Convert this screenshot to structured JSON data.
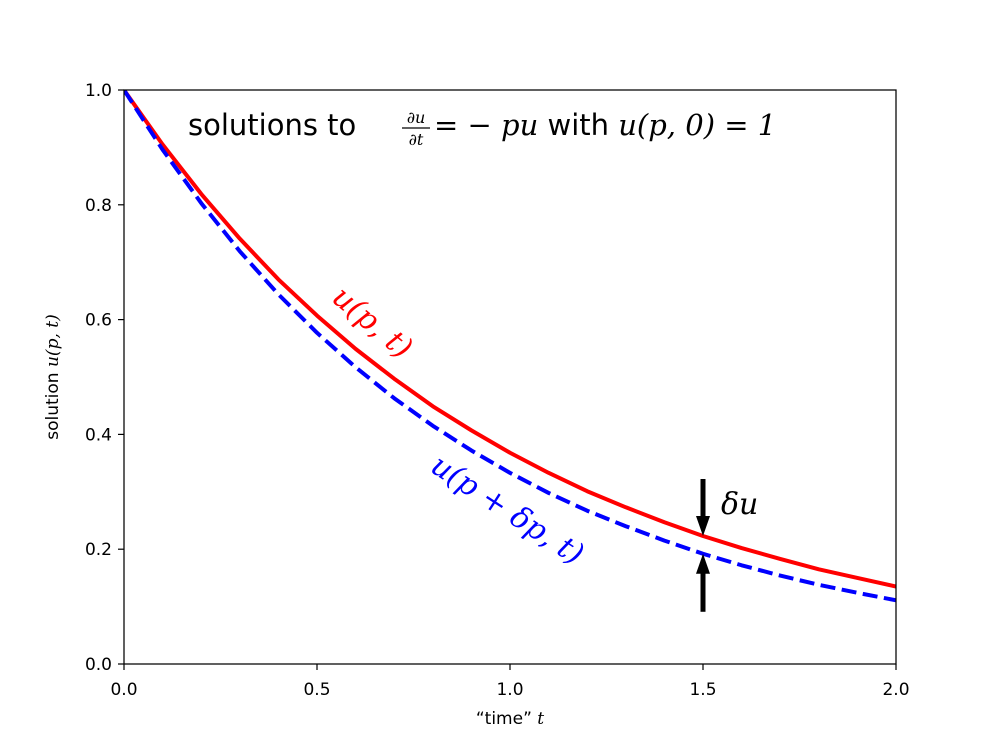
{
  "chart_data": {
    "type": "line",
    "title_parts": {
      "prefix": "solutions to ",
      "du": "∂u",
      "dt": "∂t",
      "equation": " = − pu",
      "middle": " with ",
      "initial": "u(p, 0) = 1"
    },
    "xlabel": {
      "text": "“time” ",
      "var": "t"
    },
    "ylabel": {
      "text": "solution ",
      "var": "u(p, t)"
    },
    "xlim": [
      0,
      2
    ],
    "ylim": [
      0,
      1
    ],
    "xticks": [
      0,
      0.5,
      1,
      1.5,
      2
    ],
    "xtick_labels": [
      "0.0",
      "0.5",
      "1.0",
      "1.5",
      "2.0"
    ],
    "yticks": [
      0,
      0.2,
      0.4,
      0.6,
      0.8,
      1
    ],
    "ytick_labels": [
      "0.0",
      "0.2",
      "0.4",
      "0.6",
      "0.8",
      "1.0"
    ],
    "grid": false,
    "series": [
      {
        "label": "u(p, t)",
        "color": "#ff0000",
        "style": "solid",
        "x": [
          0,
          0.1,
          0.2,
          0.3,
          0.4,
          0.5,
          0.6,
          0.7,
          0.8,
          0.9,
          1,
          1.1,
          1.2,
          1.3,
          1.4,
          1.5,
          1.6,
          1.7,
          1.8,
          1.9,
          2
        ],
        "y": [
          1,
          0.905,
          0.819,
          0.741,
          0.67,
          0.607,
          0.549,
          0.497,
          0.449,
          0.407,
          0.368,
          0.333,
          0.301,
          0.273,
          0.247,
          0.223,
          0.202,
          0.183,
          0.165,
          0.15,
          0.135
        ]
      },
      {
        "label": "u(p + δp, t)",
        "color": "#0000ff",
        "style": "dashed",
        "x": [
          0,
          0.1,
          0.2,
          0.3,
          0.4,
          0.5,
          0.6,
          0.7,
          0.8,
          0.9,
          1,
          1.1,
          1.2,
          1.3,
          1.4,
          1.5,
          1.6,
          1.7,
          1.8,
          1.9,
          2
        ],
        "y": [
          1,
          0.896,
          0.803,
          0.719,
          0.644,
          0.577,
          0.517,
          0.463,
          0.415,
          0.372,
          0.333,
          0.298,
          0.267,
          0.24,
          0.215,
          0.192,
          0.172,
          0.154,
          0.138,
          0.124,
          0.111
        ]
      }
    ],
    "annotations": [
      {
        "text": "δu",
        "x": 1.5,
        "y_top": 0.223,
        "y_bottom": 0.192,
        "color": "#000000"
      }
    ]
  }
}
